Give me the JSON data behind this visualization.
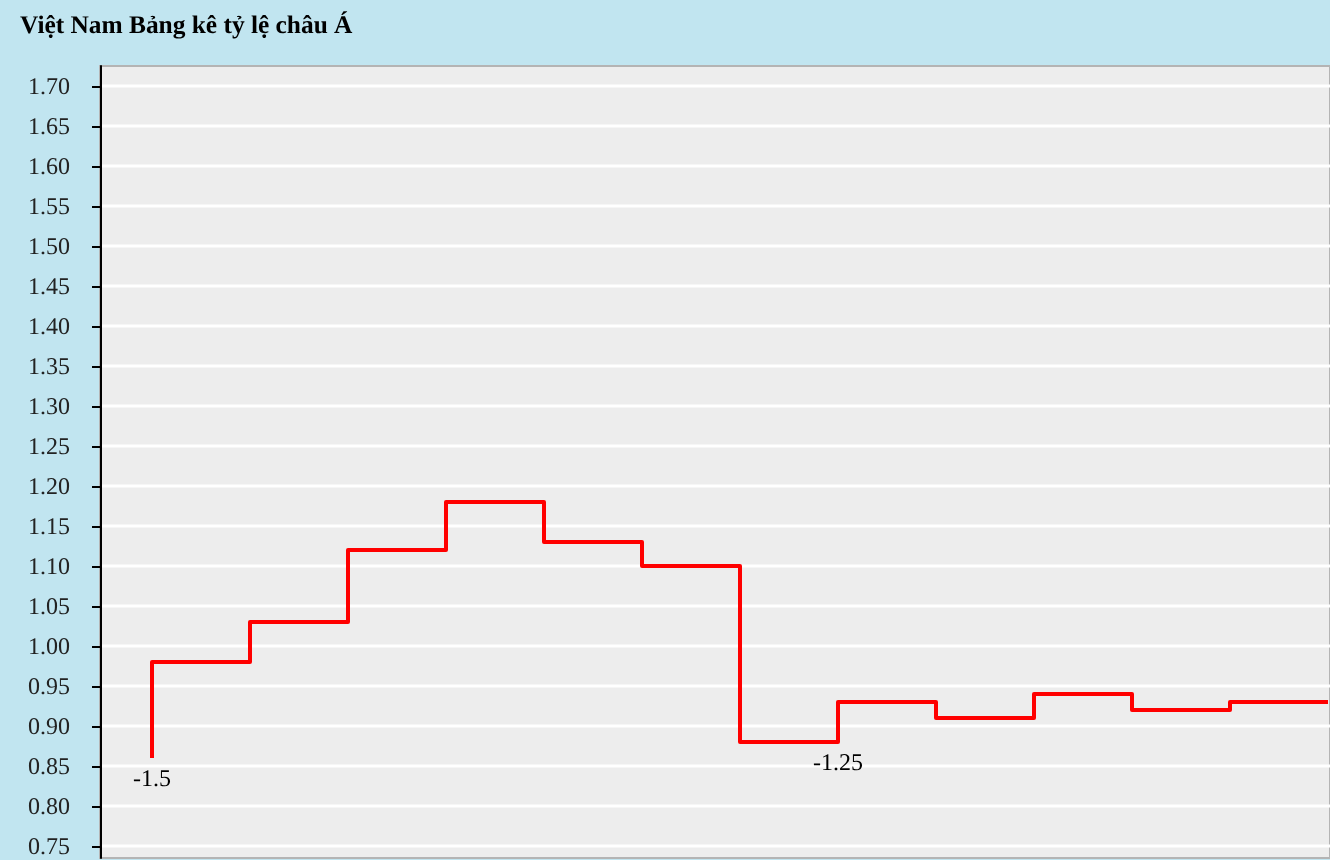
{
  "chart_data": {
    "type": "step",
    "title": "Việt Nam Bảng kê tỷ lệ châu Á",
    "categories": [
      null,
      null,
      null,
      null,
      null,
      null,
      null,
      null,
      null,
      null,
      null,
      null,
      null
    ],
    "values": [
      0.86,
      0.98,
      1.03,
      1.12,
      1.18,
      1.13,
      1.1,
      0.88,
      0.93,
      0.91,
      0.94,
      0.92,
      0.93
    ],
    "annotations": [
      {
        "text": "-1.5",
        "y": 0.86
      },
      {
        "text": "-1.25",
        "y": 0.88
      }
    ],
    "color": "#ff0000",
    "ylim": [
      0.735,
      1.725
    ],
    "yticks": [
      {
        "value": 0.75,
        "label": "0.75"
      },
      {
        "value": 0.8,
        "label": "0.80"
      },
      {
        "value": 0.85,
        "label": "0.85"
      },
      {
        "value": 0.9,
        "label": "0.90"
      },
      {
        "value": 0.95,
        "label": "0.95"
      },
      {
        "value": 1.0,
        "label": "1.00"
      },
      {
        "value": 1.05,
        "label": "1.05"
      },
      {
        "value": 1.1,
        "label": "1.10"
      },
      {
        "value": 1.15,
        "label": "1.15"
      },
      {
        "value": 1.2,
        "label": "1.20"
      },
      {
        "value": 1.25,
        "label": "1.25"
      },
      {
        "value": 1.3,
        "label": "1.30"
      },
      {
        "value": 1.35,
        "label": "1.35"
      },
      {
        "value": 1.4,
        "label": "1.40"
      },
      {
        "value": 1.45,
        "label": "1.45"
      },
      {
        "value": 1.5,
        "label": "1.50"
      },
      {
        "value": 1.55,
        "label": "1.55"
      },
      {
        "value": 1.6,
        "label": "1.60"
      },
      {
        "value": 1.65,
        "label": "1.65"
      },
      {
        "value": 1.7,
        "label": "1.70"
      }
    ],
    "grid": "y",
    "tick_labels": "y"
  }
}
